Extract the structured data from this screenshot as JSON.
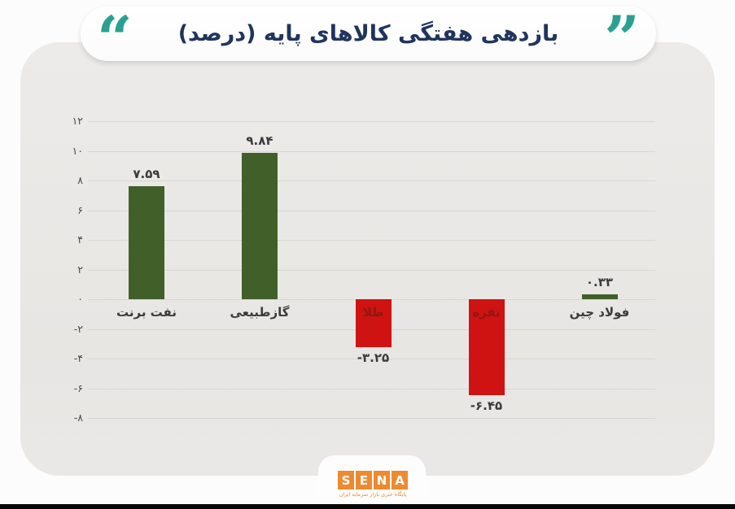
{
  "header": {
    "title": "بازدهی هفتگی کالاهای پایه (درصد)",
    "open_quote": "“",
    "close_quote": "”",
    "quote_color": "#2aa18f",
    "title_color": "#20345e"
  },
  "chart_data": {
    "type": "bar",
    "title": "بازدهی هفتگی کالاهای پایه (درصد)",
    "categories": [
      "نفت برنت",
      "گازطبیعی",
      "طلا",
      "نقره",
      "فولاد چین"
    ],
    "values": [
      7.59,
      9.84,
      -3.25,
      -6.45,
      0.33
    ],
    "value_labels": [
      "۷.۵۹",
      "۹.۸۴",
      "-۳.۲۵",
      "-۶.۴۵",
      "۰.۳۳"
    ],
    "y_ticks": [
      12,
      10,
      8,
      6,
      4,
      2,
      0,
      -2,
      -4,
      -6,
      -8
    ],
    "y_tick_labels": [
      "۱۲",
      "۱۰",
      "۸",
      "۶",
      "۴",
      "۲",
      "۰",
      "-۲",
      "-۴",
      "-۶",
      "-۸"
    ],
    "ylim": [
      -8,
      12
    ],
    "grid": true,
    "legend": false,
    "xlabel": "",
    "ylabel": "",
    "bar_colors": [
      "#415f28",
      "#415f28",
      "#cf1212",
      "#cf1212",
      "#415f28"
    ],
    "positive_color": "#415f28",
    "negative_color": "#cf1212",
    "inside_label_color": "#8a1b12"
  },
  "footer": {
    "logo_letters": [
      "S",
      "E",
      "N",
      "A"
    ],
    "logo_subtitle": "پایگاه خبری بازار سرمایه ایران",
    "logo_color": "#ee8a2f"
  }
}
